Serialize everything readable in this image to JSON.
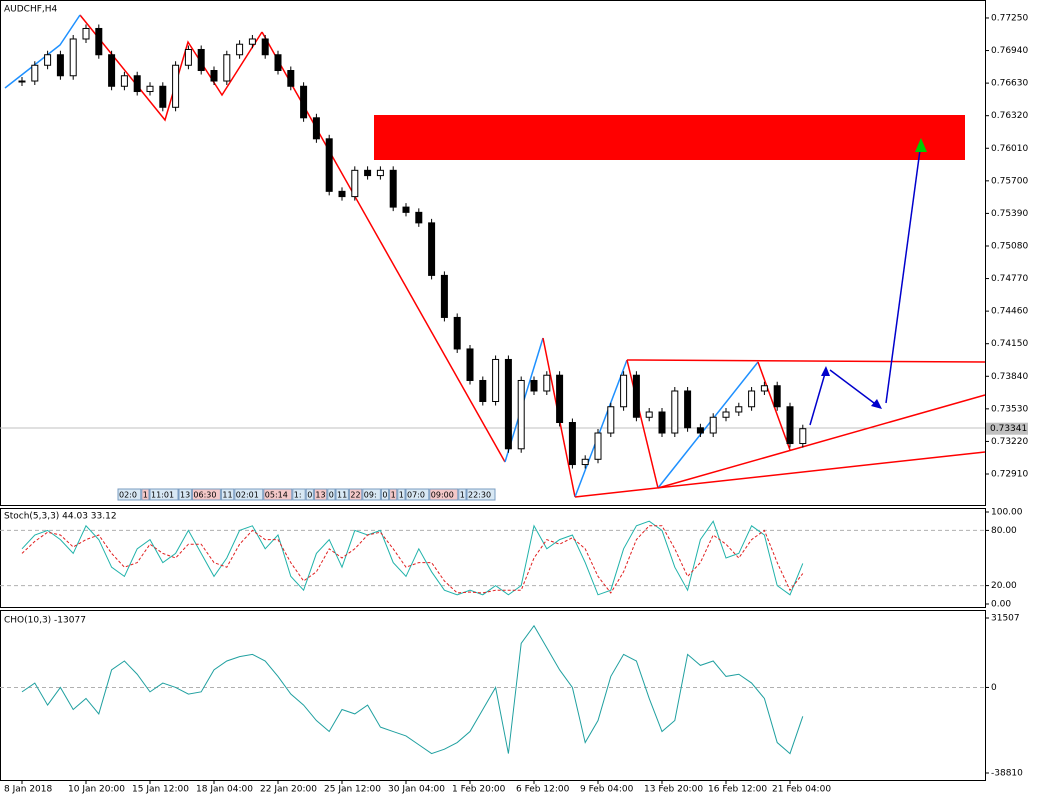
{
  "chart_data": [
    {
      "type": "candlestick",
      "title": "AUDCHF,H4",
      "categories": [
        "8 Jan 2018",
        null,
        null,
        null,
        null,
        "10 Jan 20:00",
        null,
        null,
        null,
        null,
        "15 Jan 12:00",
        null,
        null,
        null,
        null,
        "18 Jan 04:00",
        null,
        null,
        null,
        null,
        "22 Jan 20:00",
        null,
        null,
        null,
        null,
        "25 Jan 12:00",
        null,
        null,
        null,
        null,
        "30 Jan 04:00",
        null,
        null,
        null,
        null,
        "1 Feb 20:00",
        null,
        null,
        null,
        null,
        "6 Feb 12:00",
        null,
        null,
        null,
        null,
        "9 Feb 04:00",
        null,
        null,
        null,
        null,
        "13 Feb 20:00",
        null,
        null,
        null,
        null,
        "16 Feb 12:00",
        null,
        null,
        null,
        null,
        "21 Feb 04:00",
        null
      ],
      "values": [
        0.7665,
        0.768,
        0.769,
        0.767,
        0.7705,
        0.7715,
        0.769,
        0.766,
        0.767,
        0.7655,
        0.766,
        0.764,
        0.768,
        0.7695,
        0.7675,
        0.7665,
        0.769,
        0.77,
        0.7705,
        0.769,
        0.7675,
        0.766,
        0.763,
        0.761,
        0.756,
        0.7555,
        0.758,
        0.7575,
        0.758,
        0.7545,
        0.754,
        0.753,
        0.748,
        0.744,
        0.741,
        0.738,
        0.736,
        0.74,
        0.7315,
        0.738,
        0.737,
        0.7385,
        0.734,
        0.73,
        0.7305,
        0.733,
        0.7355,
        0.7385,
        0.7345,
        0.735,
        0.733,
        0.737,
        0.7335,
        0.733,
        0.7345,
        0.735,
        0.7355,
        0.737,
        0.7375,
        0.7355,
        0.732,
        0.73341
      ],
      "ylim": [
        0.72615,
        0.77421
      ],
      "yticks": [
        {
          "value": 0.7725,
          "label": "0.77250"
        },
        {
          "value": 0.7694,
          "label": "0.76940"
        },
        {
          "value": 0.7663,
          "label": "0.76630"
        },
        {
          "value": 0.7632,
          "label": "0.76320"
        },
        {
          "value": 0.7601,
          "label": "0.76010"
        },
        {
          "value": 0.757,
          "label": "0.75700"
        },
        {
          "value": 0.7539,
          "label": "0.75390"
        },
        {
          "value": 0.7508,
          "label": "0.75080"
        },
        {
          "value": 0.7477,
          "label": "0.74770"
        },
        {
          "value": 0.7446,
          "label": "0.74460"
        },
        {
          "value": 0.7415,
          "label": "0.74150"
        },
        {
          "value": 0.7384,
          "label": "0.73840"
        },
        {
          "value": 0.7353,
          "label": "0.73530"
        },
        {
          "value": 0.7322,
          "label": "0.73220"
        },
        {
          "value": 0.7291,
          "label": "0.72910"
        }
      ],
      "current_price": {
        "value": 0.73341,
        "label": "0.73341"
      },
      "session_labels": [
        "02:0",
        "1",
        "11:01",
        "13",
        "06:30",
        "11",
        "02:01",
        "05:14",
        "1:",
        "0",
        "13",
        "0",
        "11",
        "22",
        "09:",
        "0",
        "1",
        "1",
        "07:0",
        "09:00",
        "1",
        "22:30"
      ]
    },
    {
      "type": "line",
      "title": "Stoch(5,3,3) 44.03 33.12",
      "series": [
        {
          "color": "#20b2aa",
          "dash": false,
          "values": [
            60,
            75,
            80,
            70,
            55,
            85,
            70,
            40,
            30,
            60,
            70,
            45,
            55,
            80,
            55,
            30,
            50,
            80,
            85,
            60,
            75,
            30,
            15,
            55,
            70,
            40,
            80,
            75,
            80,
            45,
            30,
            60,
            35,
            15,
            10,
            15,
            10,
            20,
            10,
            20,
            85,
            60,
            70,
            75,
            45,
            10,
            15,
            60,
            85,
            90,
            80,
            40,
            15,
            70,
            90,
            50,
            55,
            85,
            75,
            20,
            10,
            44.03
          ]
        },
        {
          "color": "#e02020",
          "dash": true,
          "values": [
            55,
            68,
            78,
            75,
            62,
            70,
            75,
            55,
            40,
            45,
            65,
            55,
            50,
            65,
            65,
            45,
            40,
            65,
            80,
            70,
            70,
            45,
            25,
            35,
            60,
            50,
            60,
            75,
            78,
            60,
            40,
            45,
            45,
            25,
            12,
            13,
            12,
            15,
            15,
            15,
            50,
            70,
            65,
            72,
            60,
            30,
            12,
            35,
            70,
            85,
            85,
            60,
            30,
            45,
            75,
            65,
            50,
            70,
            80,
            45,
            15,
            33.12
          ]
        }
      ],
      "ylim": [
        -3.26,
        104.35
      ],
      "yticks": [
        {
          "value": 100,
          "label": "100.00"
        },
        {
          "value": 80,
          "label": "80.00"
        },
        {
          "value": 20,
          "label": "20.00"
        },
        {
          "value": 0,
          "label": "0.00"
        }
      ]
    },
    {
      "type": "line",
      "title": "CHO(10,3) -13077",
      "series": [
        {
          "color": "#20a0a0",
          "dash": false,
          "values": [
            -2000,
            2000,
            -8000,
            0,
            -10000,
            -5000,
            -12000,
            8000,
            12000,
            6000,
            -2000,
            2000,
            0,
            -3000,
            -2000,
            8000,
            12000,
            14000,
            15000,
            12000,
            5000,
            -3000,
            -8000,
            -15000,
            -20000,
            -10000,
            -12000,
            -8000,
            -18000,
            -20000,
            -22000,
            -26000,
            -30000,
            -28000,
            -25000,
            -20000,
            -10000,
            0,
            -30000,
            20000,
            28000,
            18000,
            8000,
            0,
            -25000,
            -15000,
            5000,
            15000,
            12000,
            -5000,
            -20000,
            -15000,
            15000,
            10000,
            12000,
            5000,
            6000,
            2000,
            -5000,
            -25000,
            -30000,
            -13077
          ]
        }
      ],
      "ylim": [
        -41986,
        35136
      ],
      "yticks": [
        31507,
        0,
        -38810
      ]
    }
  ]
}
